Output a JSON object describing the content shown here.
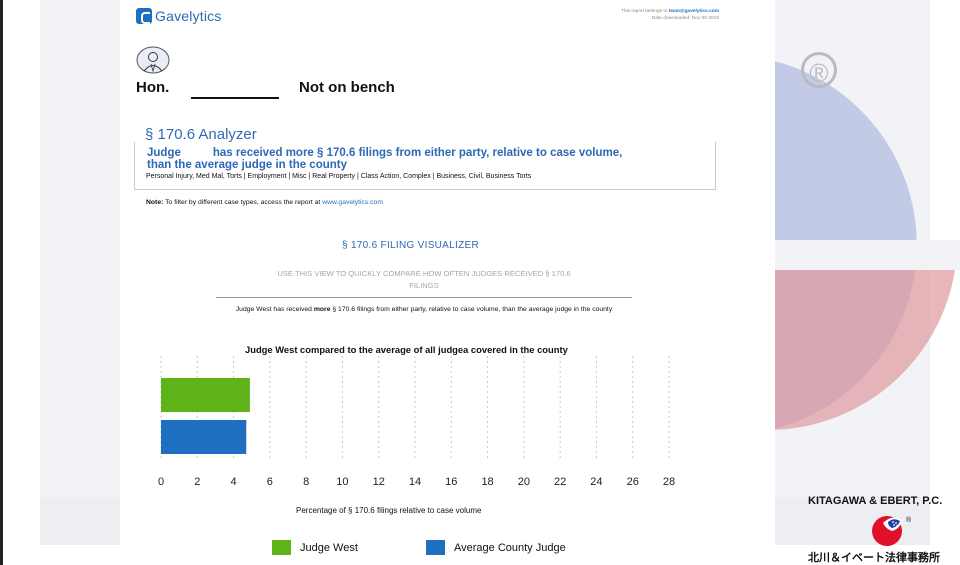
{
  "brand": {
    "logo_text": "Gavelytics",
    "logo_icon": "gavelytics-g-icon"
  },
  "report_meta": {
    "belongs_prefix": "This report belongs to ",
    "belongs_email": "team@gavelytics.com",
    "downloaded": "Date downloaded: Nov 06 2019"
  },
  "judge": {
    "honorific": "Hon.",
    "status": "Not on bench",
    "avatar_icon": "judge-avatar-icon"
  },
  "analyzer": {
    "title": "§ 170.6 Analyzer",
    "headline_line1": "Judge          has received more § 170.6 filings from either party, relative to case volume,",
    "headline_line2": "than the average judge in the county",
    "case_types": "Personal Injury, Med Mal, Torts | Employment | Misc | Real Property | Class Action, Complex | Business, Civil, Business Torts"
  },
  "note": {
    "label": "Note:",
    "text": " To filter by different case types, access the report at ",
    "link": "www.gavelytics.com"
  },
  "visualizer": {
    "title": "§ 170.6 FILING VISUALIZER",
    "subtitle_line1": "USE THIS VIEW TO QUICKLY COMPARE HOW OFTEN JUDGES RECEIVED § 170.6",
    "subtitle_line2": "FILINGS",
    "summary_prefix": "Judge West has received ",
    "summary_more": "more",
    "summary_suffix": " § 170.6 filings from either party, relative to case volume, than the average judge in the county"
  },
  "chart_data": {
    "type": "bar",
    "orientation": "horizontal",
    "title": "Judge West compared to the average of all judgea covered in the county",
    "xlabel": "Percentage of § 170.6 filings relative to case volume",
    "ylabel": "",
    "xlim": [
      0,
      28
    ],
    "xticks": [
      "0",
      "2",
      "4",
      "6",
      "8",
      "10",
      "12",
      "14",
      "16",
      "18",
      "20",
      "22",
      "24",
      "26",
      "28"
    ],
    "grid": true,
    "legend_position": "bottom",
    "series": [
      {
        "name": "Judge West",
        "value": 4.9,
        "color": "#5eb319"
      },
      {
        "name": "Average County Judge",
        "value": 4.7,
        "color": "#1f6fc0"
      }
    ]
  },
  "firm": {
    "name_en": "KITAGAWA & EBERT, P.C.",
    "name_jp": "北川＆イベート法律事務所",
    "logo_icon": "firm-flag-logo",
    "registered": "®"
  },
  "background": {
    "registered_mark": "®"
  }
}
